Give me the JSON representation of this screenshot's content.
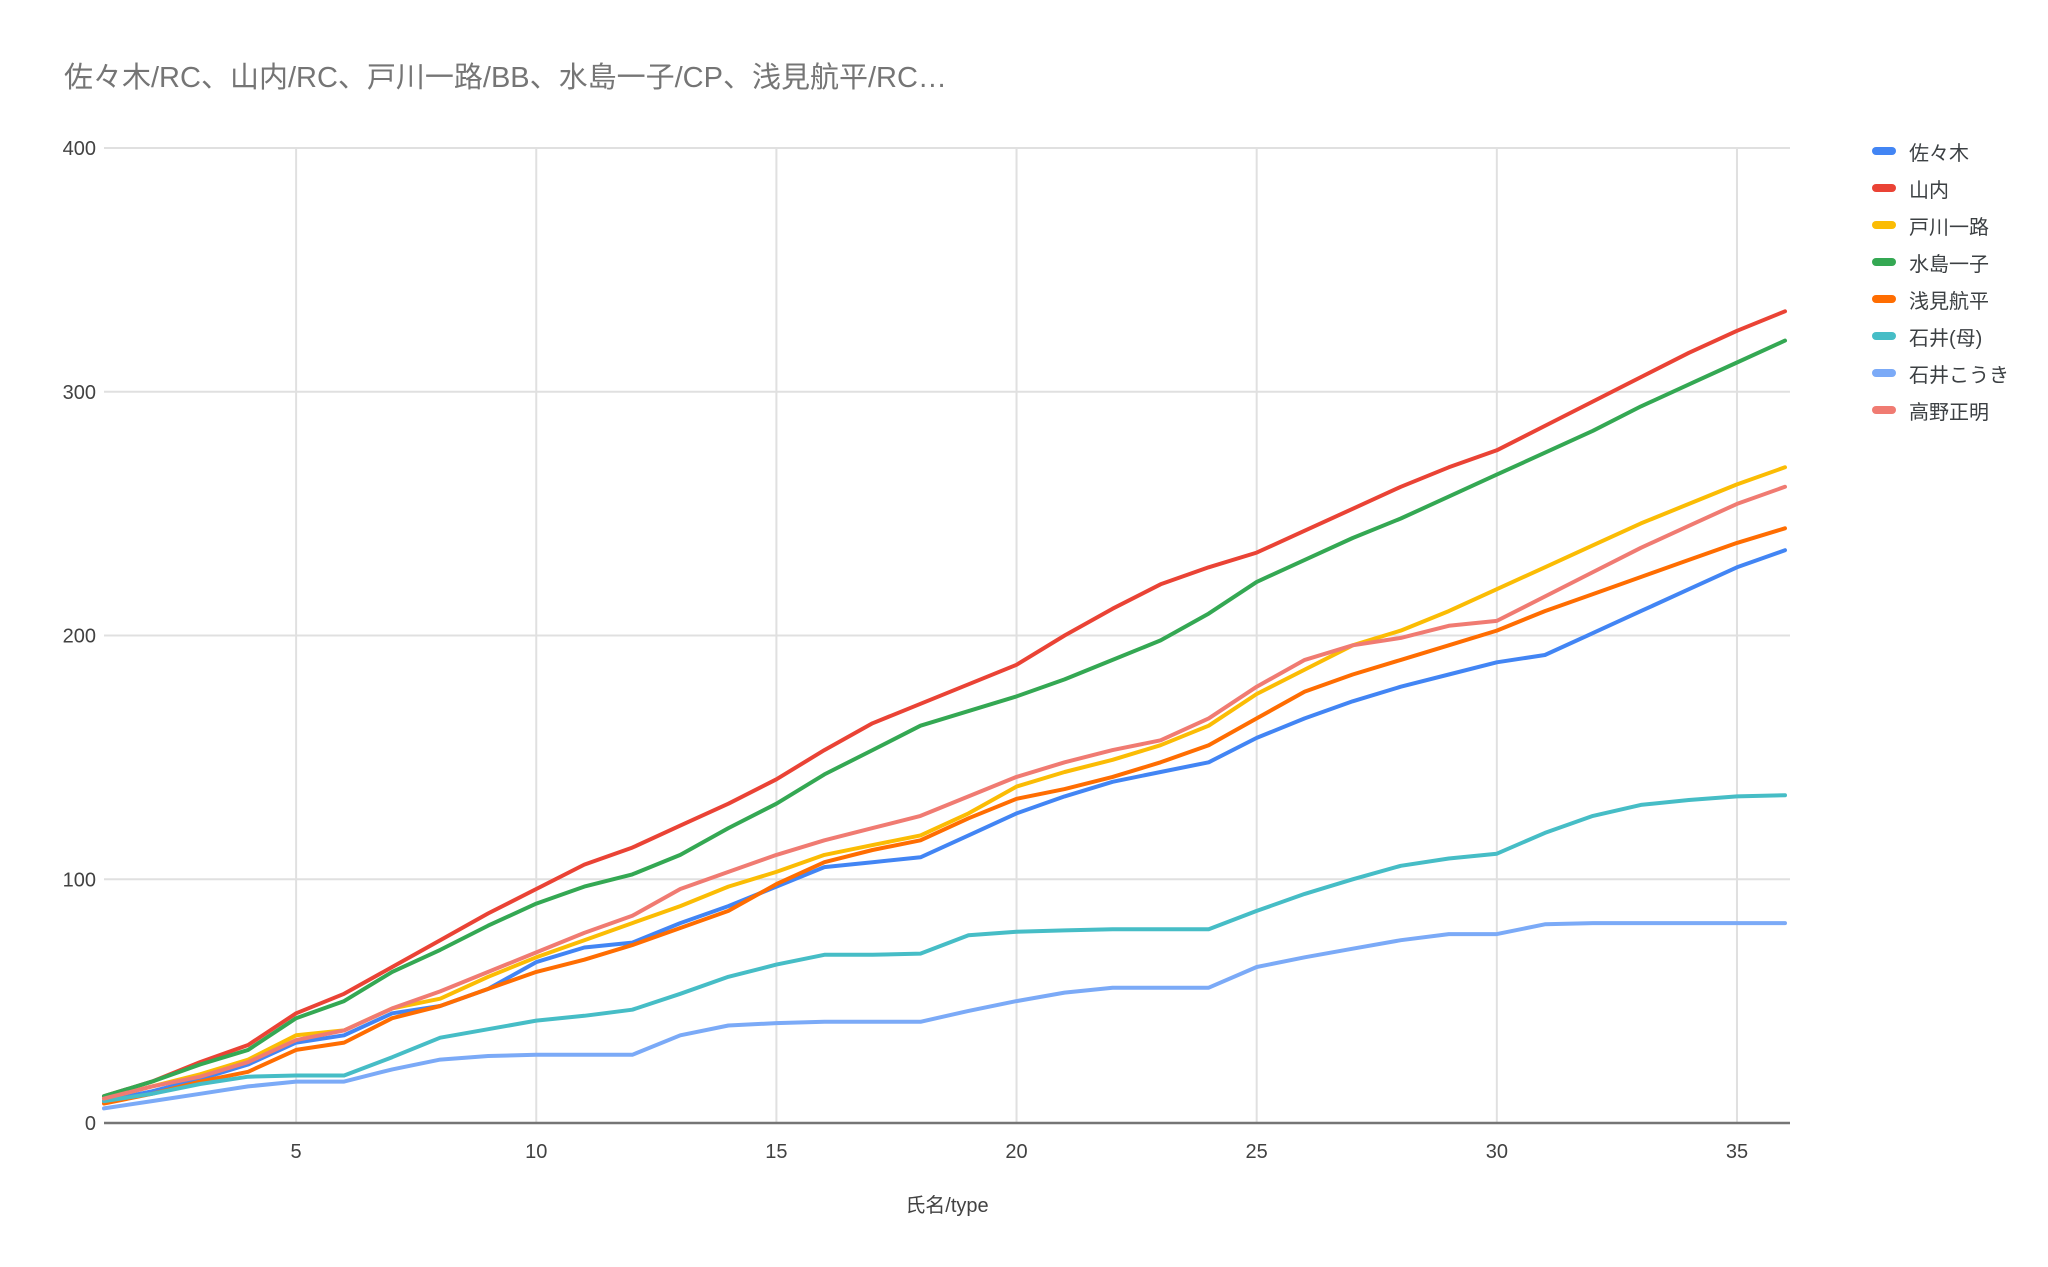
{
  "title": "佐々木/RC、山内/RC、戸川一路/BB、水島一子/CP、浅見航平/RC…",
  "colors": {
    "title_text": "#757575",
    "axis_text": "#424242",
    "legend_text": "#3c4043",
    "gridline": "#e0e0e0",
    "axis_line": "#757575",
    "background": "#ffffff"
  },
  "chart_data": {
    "type": "line",
    "title": "佐々木/RC、山内/RC、戸川一路/BB、水島一子/CP、浅見航平/RC…",
    "xlabel": "氏名/type",
    "ylabel": "",
    "xlim": [
      1,
      36
    ],
    "ylim": [
      0,
      400
    ],
    "x_ticks": [
      5,
      10,
      15,
      20,
      25,
      30,
      35
    ],
    "y_ticks": [
      0,
      100,
      200,
      300,
      400
    ],
    "grid": true,
    "legend_position": "right",
    "x": [
      1,
      2,
      3,
      4,
      5,
      6,
      7,
      8,
      9,
      10,
      11,
      12,
      13,
      14,
      15,
      16,
      17,
      18,
      19,
      20,
      21,
      22,
      23,
      24,
      25,
      26,
      27,
      28,
      29,
      30,
      31,
      32,
      33,
      34,
      35,
      36
    ],
    "series": [
      {
        "name": "佐々木",
        "color": "#4285F4",
        "values": [
          9,
          13,
          18,
          24,
          33,
          36,
          45,
          48,
          55,
          66,
          72,
          74,
          82,
          89,
          97,
          105,
          107,
          109,
          118,
          127,
          134,
          140,
          144,
          148,
          158,
          166,
          173,
          179,
          184,
          189,
          192,
          201,
          210,
          219,
          228,
          235
        ]
      },
      {
        "name": "山内",
        "color": "#EA4335",
        "values": [
          11,
          17,
          25,
          32,
          45,
          53,
          64,
          75,
          86,
          96,
          106,
          113,
          122,
          131,
          141,
          153,
          164,
          172,
          180,
          188,
          200,
          211,
          221,
          228,
          234,
          243,
          252,
          261,
          269,
          276,
          286,
          296,
          306,
          316,
          325,
          333
        ]
      },
      {
        "name": "戸川一路",
        "color": "#FBBC04",
        "values": [
          10,
          15,
          20,
          26,
          36,
          38,
          47,
          51,
          60,
          68,
          75,
          82,
          89,
          97,
          103,
          110,
          114,
          118,
          127,
          138,
          144,
          149,
          155,
          163,
          176,
          186,
          196,
          202,
          210,
          219,
          228,
          237,
          246,
          254,
          262,
          269
        ]
      },
      {
        "name": "水島一子",
        "color": "#34A853",
        "values": [
          11,
          17,
          24,
          30,
          43,
          50,
          62,
          71,
          81,
          90,
          97,
          102,
          110,
          121,
          131,
          143,
          153,
          163,
          169,
          175,
          182,
          190,
          198,
          209,
          222,
          231,
          240,
          248,
          257,
          266,
          275,
          284,
          294,
          303,
          312,
          321
        ]
      },
      {
        "name": "浅見航平",
        "color": "#FF6D01",
        "values": [
          8,
          12,
          17,
          21,
          30,
          33,
          43,
          48,
          55,
          62,
          67,
          73,
          80,
          87,
          98,
          107,
          112,
          116,
          125,
          133,
          137,
          142,
          148,
          155,
          166,
          177,
          184,
          190,
          196,
          202,
          210,
          217,
          224,
          231,
          238,
          244
        ]
      },
      {
        "name": "石井(母)",
        "color": "#46BDC6",
        "values": [
          9,
          12,
          16,
          19,
          19.5,
          19.5,
          27,
          35,
          38.5,
          42,
          44,
          46.5,
          53,
          60,
          65,
          69,
          69,
          69.5,
          77,
          78.5,
          79,
          79.5,
          79.5,
          79.5,
          87,
          94,
          100,
          105.5,
          108.5,
          110.5,
          119,
          126,
          130.5,
          132.5,
          134,
          134.5
        ]
      },
      {
        "name": "石井こうき",
        "color": "#7BAAF7",
        "values": [
          6,
          9,
          12,
          15,
          17,
          17,
          22,
          26,
          27.5,
          28,
          28,
          28,
          36,
          40,
          41,
          41.5,
          41.5,
          41.5,
          46,
          50,
          53.5,
          55.5,
          55.5,
          55.5,
          64,
          68,
          71.5,
          75,
          77.5,
          77.5,
          81.5,
          82,
          82,
          82,
          82,
          82
        ]
      },
      {
        "name": "高野正明",
        "color": "#F07B72",
        "values": [
          10,
          15,
          19,
          25,
          34,
          38,
          47,
          54,
          62,
          70,
          78,
          85,
          96,
          103,
          110,
          116,
          121,
          126,
          134,
          142,
          148,
          153,
          157,
          166,
          179,
          190,
          196,
          199,
          204,
          206,
          216,
          226,
          236,
          245,
          254,
          261
        ]
      }
    ]
  }
}
